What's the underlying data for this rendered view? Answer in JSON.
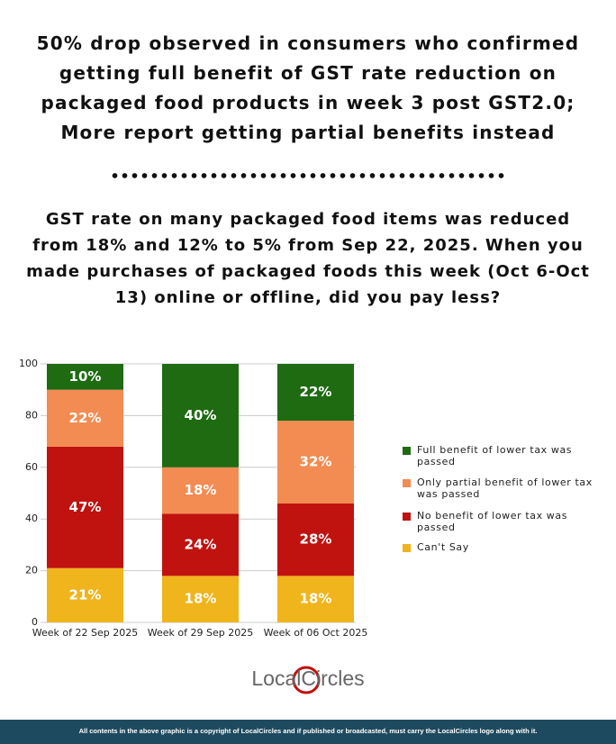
{
  "chart_data": {
    "type": "stacked-bar",
    "title": "50% drop observed in consumers who confirmed getting full benefit of GST rate reduction on packaged food products in week 3 post GST2.0; More report getting partial benefits instead",
    "subtitle": "GST rate on many packaged food items was reduced from 18% and 12% to 5% from Sep 22, 2025. When you made purchases of packaged foods this week (Oct 6-Oct 13) online or offline, did you pay less?",
    "categories": [
      "Week of 22 Sep 2025",
      "Week of 29 Sep 2025",
      "Week of 06 Oct 2025"
    ],
    "series": [
      {
        "name": "Full benefit of lower tax was passed",
        "color": "#1e6b12",
        "values": [
          10,
          40,
          22
        ],
        "value_labels": [
          "10%",
          "40%",
          "22%"
        ]
      },
      {
        "name": "Only partial benefit of lower tax was passed",
        "color": "#f28c52",
        "values": [
          22,
          18,
          32
        ],
        "value_labels": [
          "22%",
          "18%",
          "32%"
        ]
      },
      {
        "name": "No benefit of lower tax was passed",
        "color": "#c0120f",
        "values": [
          47,
          24,
          28
        ],
        "value_labels": [
          "47%",
          "24%",
          "28%"
        ]
      },
      {
        "name": "Can't Say",
        "color": "#f0b41c",
        "values": [
          21,
          18,
          18
        ],
        "value_labels": [
          "21%",
          "18%",
          "18%"
        ]
      }
    ],
    "ylim": [
      0,
      100
    ],
    "yticks": [
      0,
      20,
      40,
      60,
      80,
      100
    ],
    "grid": true
  },
  "logo": "LocalCircles",
  "footer": "All contents in the above graphic is a copyright of LocalCircles and if published or broadcasted, must carry the LocalCircles logo along with it."
}
